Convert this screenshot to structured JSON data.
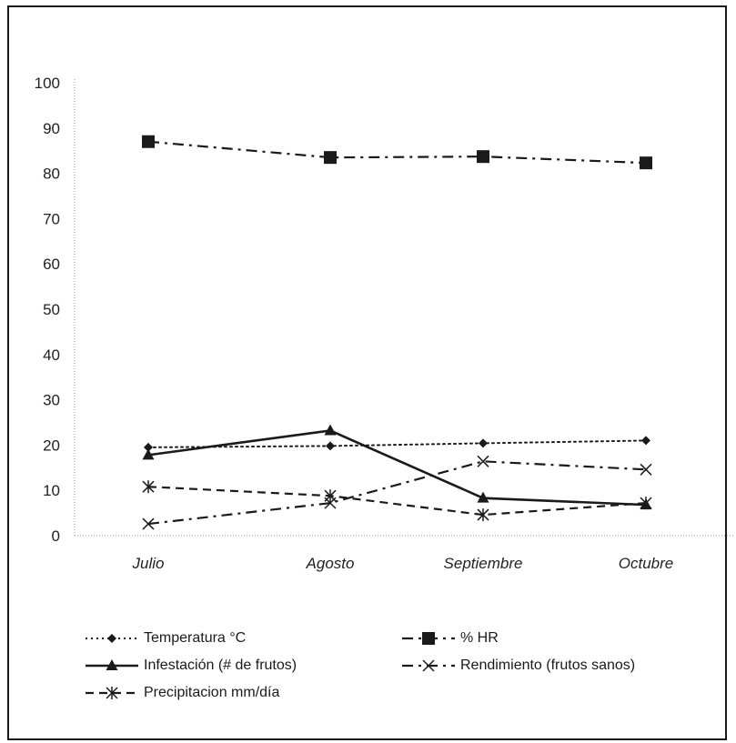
{
  "chart_data": {
    "type": "line",
    "categories": [
      "Julio",
      "Agosto",
      "Septiembre",
      "Octubre"
    ],
    "ylim": [
      0,
      100
    ],
    "yticks": [
      0,
      10,
      20,
      30,
      40,
      50,
      60,
      70,
      80,
      90,
      100
    ],
    "grid": false,
    "legend_position": "bottom",
    "series": [
      {
        "name": "Temperatura °C",
        "values": [
          19.5,
          19.8,
          20.4,
          21.0
        ],
        "line": "dotted",
        "marker": "diamond",
        "color": "#1a1a1a"
      },
      {
        "name": "% HR",
        "values": [
          87.0,
          83.5,
          83.7,
          82.3
        ],
        "line": "dashdot",
        "marker": "square",
        "color": "#1a1a1a"
      },
      {
        "name": "Infestación (# de frutos)",
        "values": [
          17.8,
          23.2,
          8.3,
          6.8
        ],
        "line": "solid",
        "marker": "triangle",
        "color": "#1a1a1a"
      },
      {
        "name": "Rendimiento (frutos sanos)",
        "values": [
          2.6,
          7.2,
          16.4,
          14.6
        ],
        "line": "dashdot",
        "marker": "x",
        "color": "#1a1a1a"
      },
      {
        "name": "Precipitacion mm/día",
        "values": [
          10.8,
          8.8,
          4.6,
          7.2
        ],
        "line": "dashed",
        "marker": "asterisk",
        "color": "#1a1a1a"
      }
    ]
  }
}
